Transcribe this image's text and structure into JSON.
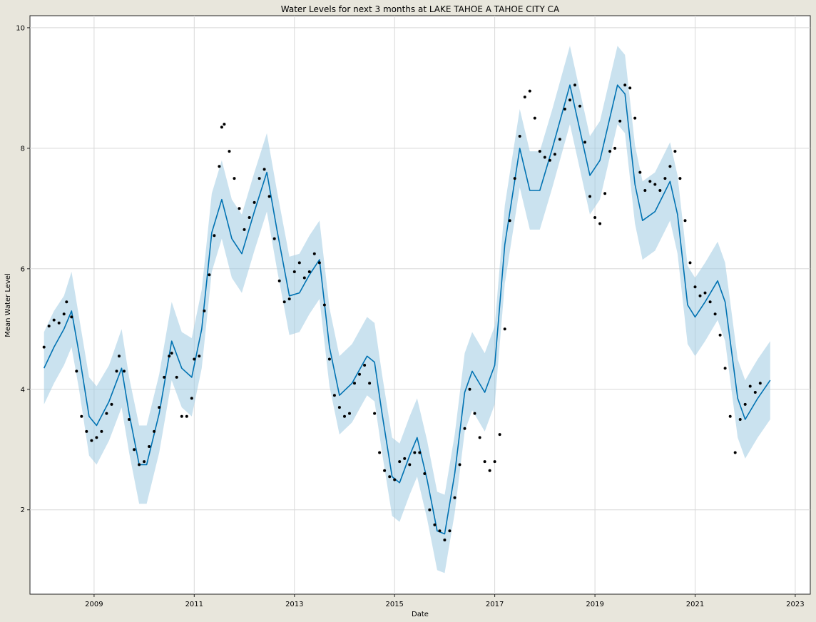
{
  "chart_data": {
    "type": "line",
    "title": "Water Levels for next 3 months at LAKE TAHOE A TAHOE CITY CA",
    "xlabel": "Date",
    "ylabel": "Mean Water Level",
    "xlim": [
      2007.72,
      2023.3
    ],
    "ylim": [
      0.6,
      10.2
    ],
    "x_ticks": [
      2009,
      2011,
      2013,
      2015,
      2017,
      2019,
      2021,
      2023
    ],
    "y_ticks": [
      2,
      4,
      6,
      8,
      10
    ],
    "grid": true,
    "colors": {
      "forecast_line": "#0072b2",
      "uncertainty_band": "#9ecae1",
      "observed_points": "#000000",
      "plot_background": "#ffffff",
      "figure_background": "#e8e6dc"
    },
    "series": [
      {
        "kind": "forecast",
        "x": [
          2008.0,
          2008.2,
          2008.4,
          2008.55,
          2008.7,
          2008.9,
          2009.05,
          2009.3,
          2009.55,
          2009.7,
          2009.9,
          2010.05,
          2010.3,
          2010.55,
          2010.75,
          2010.95,
          2011.15,
          2011.35,
          2011.55,
          2011.75,
          2011.95,
          2012.2,
          2012.45,
          2012.65,
          2012.9,
          2013.1,
          2013.3,
          2013.5,
          2013.7,
          2013.9,
          2014.15,
          2014.45,
          2014.6,
          2014.75,
          2014.95,
          2015.1,
          2015.3,
          2015.45,
          2015.65,
          2015.85,
          2016.0,
          2016.2,
          2016.4,
          2016.55,
          2016.8,
          2017.0,
          2017.2,
          2017.5,
          2017.7,
          2017.9,
          2018.15,
          2018.5,
          2018.7,
          2018.9,
          2019.1,
          2019.45,
          2019.6,
          2019.8,
          2019.95,
          2020.2,
          2020.5,
          2020.65,
          2020.85,
          2021.0,
          2021.2,
          2021.45,
          2021.6,
          2021.85,
          2022.0,
          2022.25,
          2022.5
        ],
        "y": [
          4.35,
          4.7,
          5.0,
          5.3,
          4.6,
          3.55,
          3.4,
          3.8,
          4.35,
          3.6,
          2.75,
          2.75,
          3.6,
          4.8,
          4.35,
          4.2,
          5.0,
          6.6,
          7.15,
          6.5,
          6.25,
          6.95,
          7.6,
          6.65,
          5.55,
          5.6,
          5.9,
          6.15,
          4.7,
          3.9,
          4.1,
          4.55,
          4.45,
          3.6,
          2.55,
          2.45,
          2.9,
          3.2,
          2.5,
          1.65,
          1.6,
          2.6,
          3.95,
          4.3,
          3.95,
          4.4,
          6.4,
          8.0,
          7.3,
          7.3,
          8.0,
          9.05,
          8.3,
          7.55,
          7.8,
          9.05,
          8.9,
          7.4,
          6.8,
          6.95,
          7.45,
          6.9,
          5.4,
          5.2,
          5.45,
          5.8,
          5.45,
          3.85,
          3.5,
          3.85,
          4.15
        ],
        "upper": [
          4.95,
          5.3,
          5.55,
          5.95,
          5.2,
          4.2,
          4.05,
          4.4,
          5.0,
          4.2,
          3.4,
          3.4,
          4.25,
          5.45,
          4.95,
          4.85,
          5.65,
          7.25,
          7.8,
          7.15,
          6.9,
          7.6,
          8.25,
          7.3,
          6.2,
          6.25,
          6.55,
          6.8,
          5.35,
          4.55,
          4.75,
          5.2,
          5.1,
          4.25,
          3.2,
          3.1,
          3.55,
          3.85,
          3.15,
          2.3,
          2.25,
          3.25,
          4.6,
          4.95,
          4.6,
          5.05,
          7.05,
          8.65,
          7.95,
          7.95,
          8.65,
          9.7,
          8.95,
          8.2,
          8.45,
          9.7,
          9.55,
          8.05,
          7.45,
          7.6,
          8.1,
          7.55,
          6.05,
          5.85,
          6.1,
          6.45,
          6.1,
          4.5,
          4.15,
          4.5,
          4.8
        ],
        "lower": [
          3.75,
          4.1,
          4.4,
          4.7,
          4.0,
          2.9,
          2.75,
          3.15,
          3.7,
          2.95,
          2.1,
          2.1,
          2.95,
          4.15,
          3.7,
          3.55,
          4.35,
          5.95,
          6.5,
          5.85,
          5.6,
          6.3,
          6.95,
          6.0,
          4.9,
          4.95,
          5.25,
          5.5,
          4.05,
          3.25,
          3.45,
          3.9,
          3.8,
          2.95,
          1.9,
          1.8,
          2.25,
          2.55,
          1.85,
          1.0,
          0.95,
          1.95,
          3.3,
          3.65,
          3.3,
          3.75,
          5.75,
          7.35,
          6.65,
          6.65,
          7.35,
          8.4,
          7.65,
          6.9,
          7.15,
          8.4,
          8.25,
          6.75,
          6.15,
          6.3,
          6.8,
          6.25,
          4.75,
          4.55,
          4.8,
          5.15,
          4.8,
          3.2,
          2.85,
          3.2,
          3.5
        ]
      },
      {
        "kind": "observed",
        "x": [
          2008.0,
          2008.1,
          2008.2,
          2008.3,
          2008.4,
          2008.45,
          2008.55,
          2008.65,
          2008.75,
          2008.85,
          2008.95,
          2009.05,
          2009.15,
          2009.25,
          2009.35,
          2009.45,
          2009.5,
          2009.6,
          2009.7,
          2009.8,
          2009.9,
          2010.0,
          2010.1,
          2010.2,
          2010.3,
          2010.4,
          2010.5,
          2010.55,
          2010.65,
          2010.75,
          2010.85,
          2010.95,
          2011.0,
          2011.1,
          2011.2,
          2011.3,
          2011.4,
          2011.5,
          2011.55,
          2011.6,
          2011.7,
          2011.8,
          2011.9,
          2012.0,
          2012.1,
          2012.2,
          2012.3,
          2012.4,
          2012.5,
          2012.6,
          2012.7,
          2012.8,
          2012.9,
          2013.0,
          2013.1,
          2013.2,
          2013.3,
          2013.4,
          2013.5,
          2013.6,
          2013.7,
          2013.8,
          2013.9,
          2014.0,
          2014.1,
          2014.2,
          2014.3,
          2014.4,
          2014.5,
          2014.6,
          2014.7,
          2014.8,
          2014.9,
          2015.0,
          2015.1,
          2015.2,
          2015.3,
          2015.4,
          2015.5,
          2015.6,
          2015.7,
          2015.8,
          2015.9,
          2016.0,
          2016.1,
          2016.2,
          2016.3,
          2016.4,
          2016.5,
          2016.6,
          2016.7,
          2016.8,
          2016.9,
          2017.0,
          2017.1,
          2017.2,
          2017.3,
          2017.4,
          2017.5,
          2017.6,
          2017.7,
          2017.8,
          2017.9,
          2018.0,
          2018.1,
          2018.2,
          2018.3,
          2018.4,
          2018.5,
          2018.6,
          2018.7,
          2018.8,
          2018.9,
          2019.0,
          2019.1,
          2019.2,
          2019.3,
          2019.4,
          2019.5,
          2019.6,
          2019.7,
          2019.8,
          2019.9,
          2020.0,
          2020.1,
          2020.2,
          2020.3,
          2020.4,
          2020.5,
          2020.6,
          2020.7,
          2020.8,
          2020.9,
          2021.0,
          2021.1,
          2021.2,
          2021.3,
          2021.4,
          2021.5,
          2021.6,
          2021.7,
          2021.8,
          2021.9,
          2022.0,
          2022.1,
          2022.2,
          2022.3
        ],
        "y": [
          4.7,
          5.05,
          5.15,
          5.1,
          5.25,
          5.45,
          5.2,
          4.3,
          3.55,
          3.3,
          3.15,
          3.2,
          3.3,
          3.6,
          3.75,
          4.3,
          4.55,
          4.3,
          3.5,
          3.0,
          2.75,
          2.8,
          3.05,
          3.3,
          3.7,
          4.2,
          4.55,
          4.6,
          4.2,
          3.55,
          3.55,
          3.85,
          4.5,
          4.55,
          5.3,
          5.9,
          6.55,
          7.7,
          8.35,
          8.4,
          7.95,
          7.5,
          7.0,
          6.65,
          6.85,
          7.1,
          7.5,
          7.65,
          7.2,
          6.5,
          5.8,
          5.45,
          5.5,
          5.95,
          6.1,
          5.85,
          5.95,
          6.25,
          6.1,
          5.4,
          4.5,
          3.9,
          3.7,
          3.55,
          3.6,
          4.1,
          4.25,
          4.4,
          4.1,
          3.6,
          2.95,
          2.65,
          2.55,
          2.5,
          2.8,
          2.85,
          2.75,
          2.95,
          2.95,
          2.6,
          2.0,
          1.75,
          1.65,
          1.5,
          1.65,
          2.2,
          2.75,
          3.35,
          4.0,
          3.6,
          3.2,
          2.8,
          2.65,
          2.8,
          3.25,
          5.0,
          6.8,
          7.5,
          8.2,
          8.85,
          8.95,
          8.5,
          7.95,
          7.85,
          7.8,
          7.9,
          8.15,
          8.65,
          8.8,
          9.05,
          8.7,
          8.1,
          7.2,
          6.85,
          6.75,
          7.25,
          7.95,
          8.0,
          8.45,
          9.05,
          9.0,
          8.5,
          7.6,
          7.3,
          7.45,
          7.4,
          7.3,
          7.5,
          7.7,
          7.95,
          7.5,
          6.8,
          6.1,
          5.7,
          5.55,
          5.6,
          5.45,
          5.25,
          4.9,
          4.35,
          3.55,
          2.95,
          3.5,
          3.75,
          4.05,
          3.95,
          4.1
        ]
      }
    ]
  }
}
